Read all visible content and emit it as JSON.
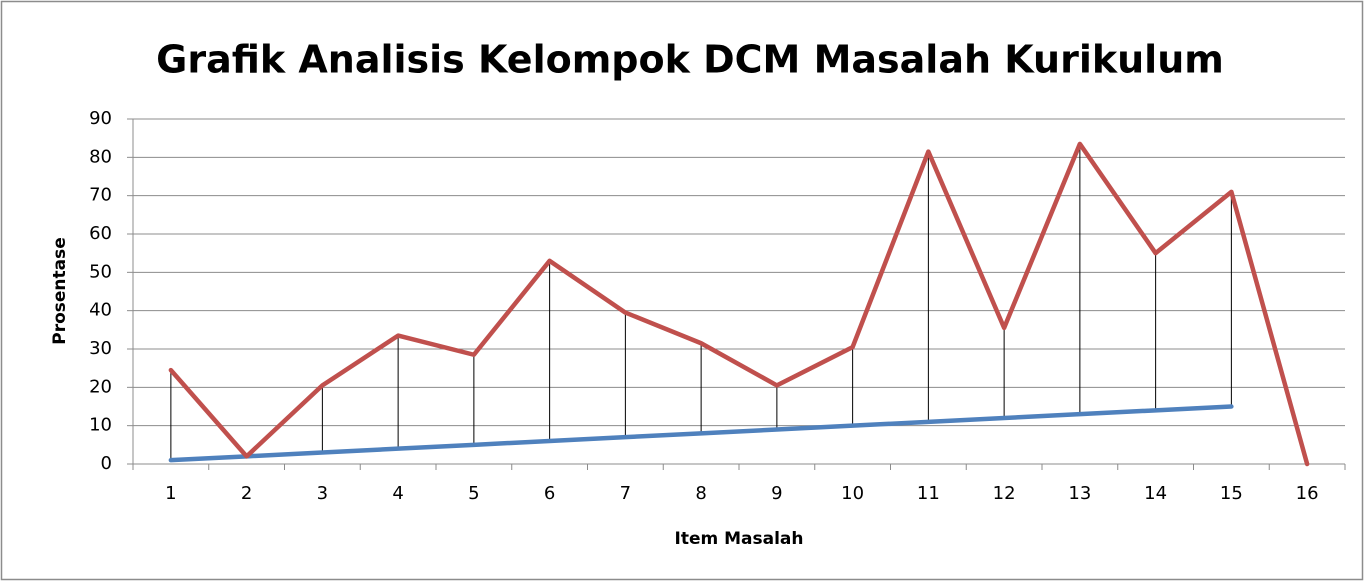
{
  "chart_data": {
    "type": "line",
    "title": "Grafik Analisis Kelompok DCM Masalah Kurikulum",
    "x_label": "Item Masalah",
    "y_label": "Prosentase",
    "categories": [
      "1",
      "2",
      "3",
      "4",
      "5",
      "6",
      "7",
      "8",
      "9",
      "10",
      "11",
      "12",
      "13",
      "14",
      "15",
      "16"
    ],
    "series": [
      {
        "color": "#c0504d",
        "values": [
          24.5,
          2,
          20.5,
          33.5,
          28.5,
          53,
          39.5,
          31.5,
          20.5,
          30.5,
          81.5,
          35.5,
          83.5,
          55,
          71,
          0
        ]
      },
      {
        "color": "#4f81bd",
        "values": [
          1,
          2,
          3,
          4,
          5,
          6,
          7,
          8,
          9,
          10,
          11,
          12,
          13,
          14,
          15,
          null
        ]
      }
    ],
    "ylim": [
      0,
      90
    ],
    "yticks": [
      0,
      10,
      20,
      30,
      40,
      50,
      60,
      70,
      80,
      90
    ],
    "grid": true,
    "drop_lines": true
  }
}
